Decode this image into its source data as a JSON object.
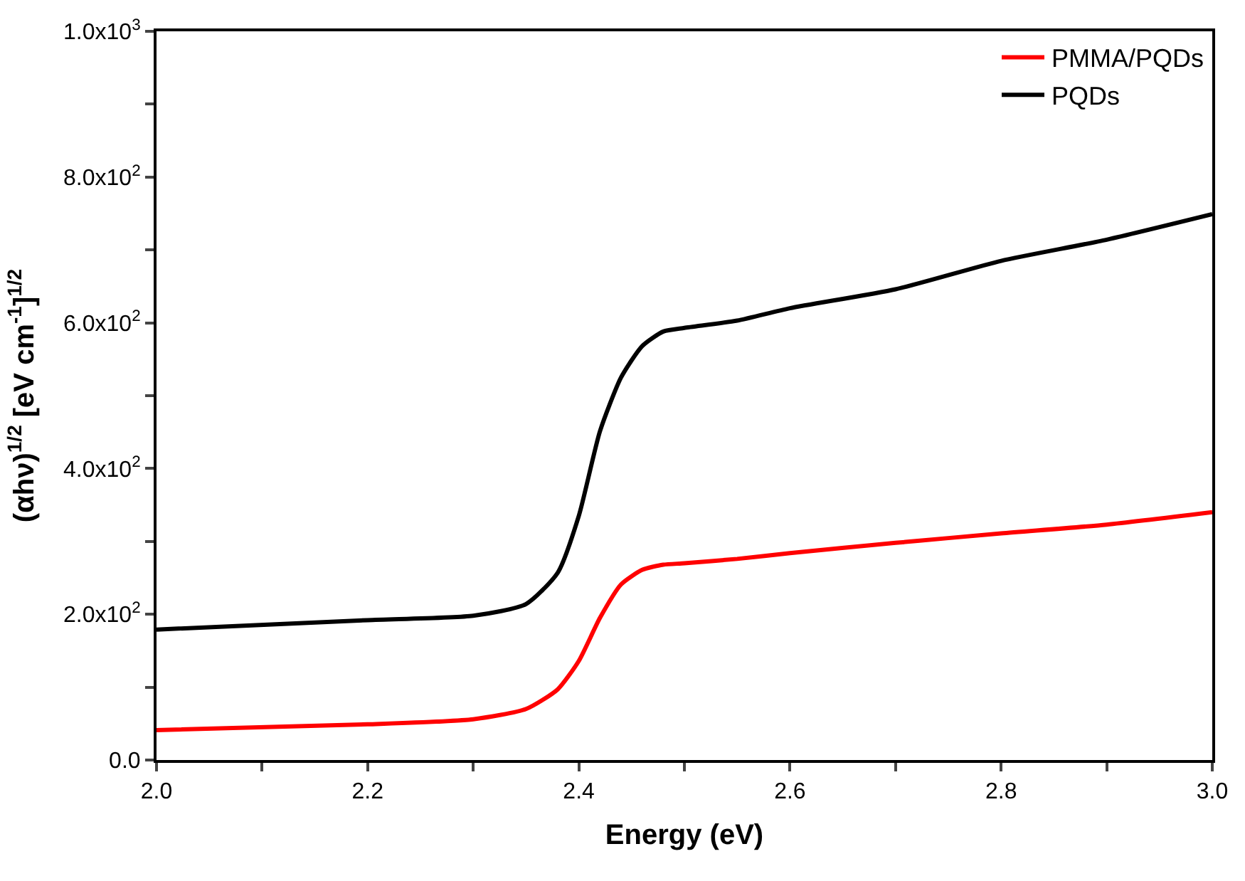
{
  "chart_data": {
    "type": "line",
    "xlabel": "Energy (eV)",
    "ylabel": "(αhν)$^{1/2}$ [eV cm$^{-1}$]$^{1/2}$",
    "xlim": [
      2.0,
      3.0
    ],
    "ylim": [
      0,
      1000
    ],
    "xticks": [
      {
        "value": 2.0,
        "label": "2.0"
      },
      {
        "value": 2.1,
        "label": null
      },
      {
        "value": 2.2,
        "label": "2.2"
      },
      {
        "value": 2.3,
        "label": null
      },
      {
        "value": 2.4,
        "label": "2.4"
      },
      {
        "value": 2.5,
        "label": null
      },
      {
        "value": 2.6,
        "label": "2.6"
      },
      {
        "value": 2.7,
        "label": null
      },
      {
        "value": 2.8,
        "label": "2.8"
      },
      {
        "value": 2.9,
        "label": null
      },
      {
        "value": 3.0,
        "label": "3.0"
      }
    ],
    "yticks": [
      {
        "value": 0,
        "label": "0.0"
      },
      {
        "value": 100,
        "label": null
      },
      {
        "value": 200,
        "label": "2.0x10$^{2}$"
      },
      {
        "value": 300,
        "label": null
      },
      {
        "value": 400,
        "label": "4.0x10$^{2}$"
      },
      {
        "value": 500,
        "label": null
      },
      {
        "value": 600,
        "label": "6.0x10$^{2}$"
      },
      {
        "value": 700,
        "label": null
      },
      {
        "value": 800,
        "label": "8.0x10$^{2}$"
      },
      {
        "value": 900,
        "label": null
      },
      {
        "value": 1000,
        "label": "1.0x10$^{3}$"
      }
    ],
    "legend": "top right",
    "marker": "none",
    "line_style": "solid",
    "x": [
      2.0,
      2.2,
      2.3,
      2.35,
      2.38,
      2.4,
      2.42,
      2.44,
      2.46,
      2.48,
      2.5,
      2.55,
      2.6,
      2.7,
      2.8,
      2.9,
      3.0
    ],
    "series": [
      {
        "name": "PMMA/PQDs",
        "color": "#ff0000",
        "values": [
          41,
          49,
          56,
          70,
          97,
          136,
          195,
          241,
          261,
          268,
          270,
          276,
          284,
          298,
          311,
          323,
          340
        ]
      },
      {
        "name": "PQDs",
        "color": "#000000",
        "values": [
          179,
          192,
          198,
          214,
          257,
          335,
          451,
          525,
          568,
          588,
          593,
          603,
          620,
          646,
          685,
          714,
          749
        ]
      }
    ]
  }
}
